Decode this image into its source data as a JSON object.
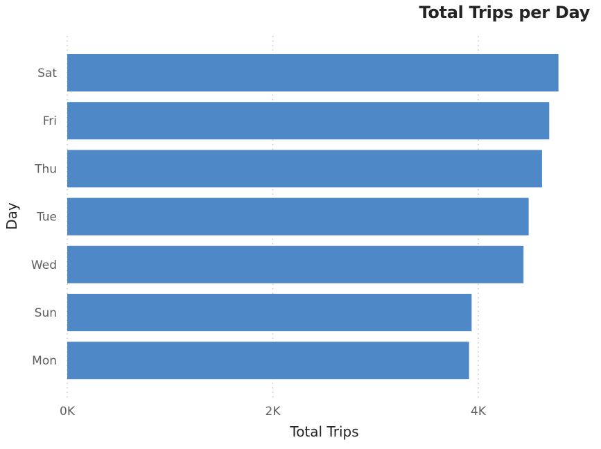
{
  "chart_data": {
    "type": "bar",
    "orientation": "horizontal",
    "title": "Total Trips per Day",
    "xlabel": "Total Trips",
    "ylabel": "Day",
    "categories": [
      "Sat",
      "Fri",
      "Thu",
      "Tue",
      "Wed",
      "Sun",
      "Mon"
    ],
    "values": [
      4780,
      4690,
      4620,
      4490,
      4440,
      3935,
      3910
    ],
    "xlim": [
      0,
      4800
    ],
    "x_ticks": [
      0,
      2000,
      4000
    ],
    "x_tick_labels": [
      "0K",
      "2K",
      "4K"
    ],
    "grid": "vertical dotted",
    "bar_color": "#4f88c6"
  }
}
